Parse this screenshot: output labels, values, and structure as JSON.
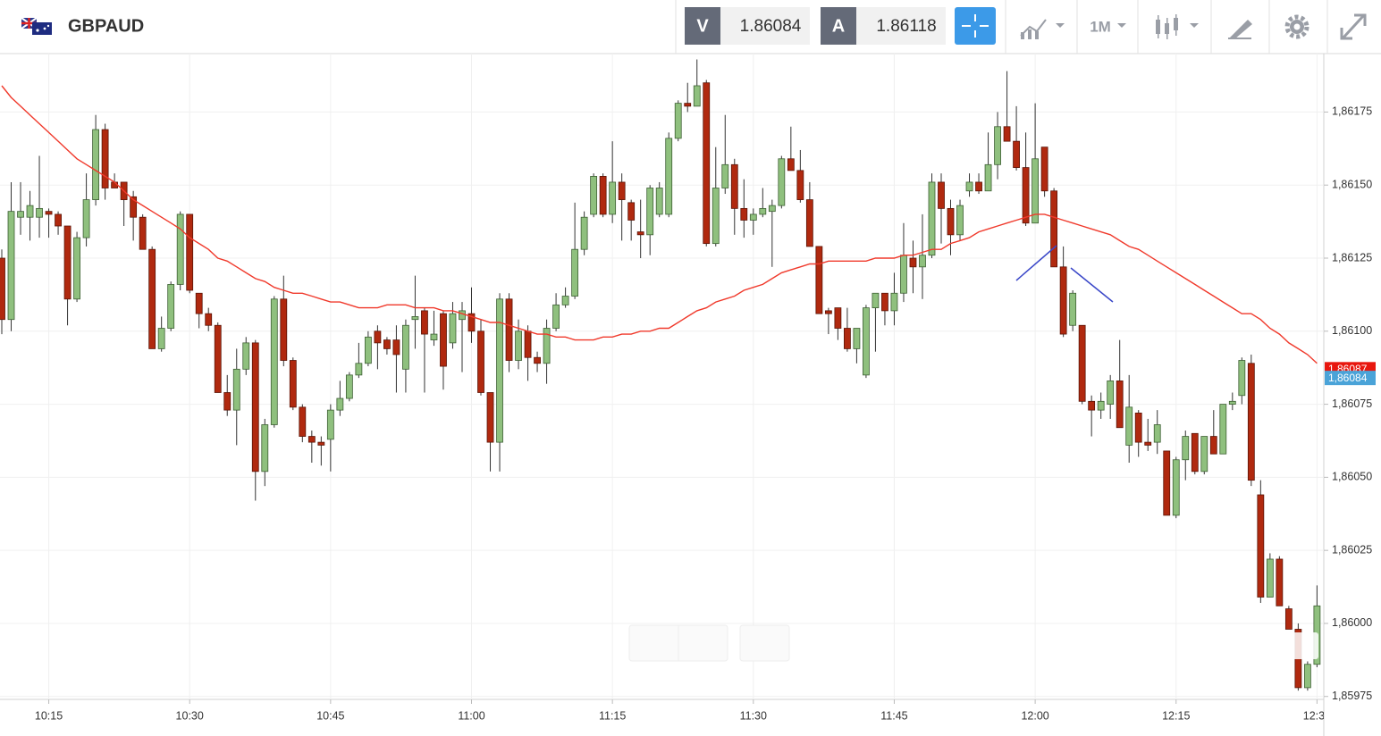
{
  "header": {
    "symbol": "GBPAUD",
    "sell_label": "V",
    "sell_price": "1.86084",
    "buy_label": "A",
    "buy_price": "1.86118",
    "timeframe": "1M"
  },
  "chart_data": {
    "type": "candlestick",
    "categories": [
      null,
      null,
      null,
      null,
      null,
      "10:15",
      null,
      null,
      null,
      null,
      null,
      null,
      null,
      null,
      null,
      null,
      null,
      null,
      null,
      null,
      "10:30",
      null,
      null,
      null,
      null,
      null,
      null,
      null,
      null,
      null,
      null,
      null,
      null,
      null,
      null,
      "10:45",
      null,
      null,
      null,
      null,
      null,
      null,
      null,
      null,
      null,
      null,
      null,
      null,
      null,
      null,
      "11:00",
      null,
      null,
      null,
      null,
      null,
      null,
      null,
      null,
      null,
      null,
      null,
      null,
      null,
      null,
      "11:15",
      null,
      null,
      null,
      null,
      null,
      null,
      null,
      null,
      null,
      null,
      null,
      null,
      null,
      null,
      "11:30",
      null,
      null,
      null,
      null,
      null,
      null,
      null,
      null,
      null,
      null,
      null,
      null,
      null,
      null,
      "11:45",
      null,
      null,
      null,
      null,
      null,
      null,
      null,
      null,
      null,
      null,
      null,
      null,
      null,
      null,
      "12:00",
      null,
      null,
      null,
      null,
      null,
      null,
      null,
      null,
      null,
      null,
      null,
      null,
      null,
      null,
      "12:15",
      null,
      null,
      null,
      null,
      null,
      null,
      null,
      null,
      null,
      null,
      null,
      null,
      null,
      null,
      "12:30"
    ],
    "candles": {
      "up_color": "#8fc07e",
      "down_color": "#b0290f",
      "open": [
        1.86125,
        1.86104,
        1.86139,
        1.86139,
        1.86139,
        1.86141,
        1.8614,
        1.86136,
        1.86111,
        1.86132,
        1.86145,
        1.86169,
        1.86151,
        1.86151,
        1.86146,
        1.86139,
        1.86128,
        1.86094,
        1.86101,
        1.86116,
        1.8614,
        1.86113,
        1.86106,
        1.86102,
        1.86079,
        1.86073,
        1.86087,
        1.86096,
        1.86052,
        1.86068,
        1.86111,
        1.8609,
        1.86074,
        1.86064,
        1.86062,
        1.86063,
        1.86073,
        1.86077,
        1.86085,
        1.86089,
        1.861,
        1.86097,
        1.86097,
        1.86087,
        1.86104,
        1.86107,
        1.86097,
        1.86106,
        1.86096,
        1.86104,
        1.86106,
        1.861,
        1.86079,
        1.86062,
        1.86111,
        1.8609,
        1.861,
        1.86091,
        1.86089,
        1.86101,
        1.86109,
        1.86112,
        1.86128,
        1.8614,
        1.86153,
        1.8614,
        1.86151,
        1.86144,
        1.86134,
        1.86133,
        1.8614,
        1.8614,
        1.86166,
        1.86178,
        1.86177,
        1.86185,
        1.8613,
        1.86149,
        1.86157,
        1.86142,
        1.86138,
        1.8614,
        1.86141,
        1.86143,
        1.86159,
        1.86155,
        1.86145,
        1.86129,
        1.86107,
        1.86108,
        1.86101,
        1.86094,
        1.86085,
        1.86108,
        1.86113,
        1.86107,
        1.86113,
        1.86125,
        1.86122,
        1.86126,
        1.86151,
        1.86142,
        1.86133,
        1.86148,
        1.86151,
        1.86148,
        1.86157,
        1.8617,
        1.86165,
        1.86156,
        1.86137,
        1.86163,
        1.86148,
        1.86122,
        1.86102,
        1.86102,
        1.86076,
        1.86073,
        1.86075,
        1.86083,
        1.86061,
        1.86072,
        1.86062,
        1.86062,
        1.86059,
        1.86037,
        1.86056,
        1.86065,
        1.86052,
        1.86064,
        1.86058,
        1.86075,
        1.86078,
        1.86089,
        1.86044,
        1.86009,
        1.86022,
        1.86005,
        1.85998,
        1.85978,
        1.85986
      ],
      "high": [
        1.86128,
        1.86151,
        1.86151,
        1.86148,
        1.8616,
        1.86142,
        1.86141,
        1.86136,
        1.86134,
        1.86154,
        1.86174,
        1.86171,
        1.86154,
        1.86151,
        1.86148,
        1.8614,
        1.86129,
        1.86105,
        1.86117,
        1.86141,
        1.8614,
        1.86113,
        1.86108,
        1.86103,
        1.86085,
        1.86094,
        1.86098,
        1.86097,
        1.8607,
        1.86112,
        1.86119,
        1.86091,
        1.86075,
        1.86066,
        1.86064,
        1.86075,
        1.86083,
        1.86086,
        1.86096,
        1.861,
        1.86102,
        1.86098,
        1.86102,
        1.86104,
        1.86119,
        1.86108,
        1.86107,
        1.86107,
        1.8611,
        1.8611,
        1.86115,
        1.86104,
        1.86079,
        1.86113,
        1.86113,
        1.86104,
        1.86102,
        1.86093,
        1.86104,
        1.86113,
        1.86115,
        1.86144,
        1.86141,
        1.86154,
        1.86154,
        1.86165,
        1.86154,
        1.86145,
        1.86145,
        1.8615,
        1.86151,
        1.86168,
        1.86179,
        1.86185,
        1.86193,
        1.86186,
        1.86163,
        1.86174,
        1.86159,
        1.86152,
        1.86142,
        1.86149,
        1.86145,
        1.8616,
        1.8617,
        1.86162,
        1.86151,
        1.86129,
        1.86108,
        1.86108,
        1.86108,
        1.86101,
        1.86109,
        1.86113,
        1.86113,
        1.8612,
        1.86137,
        1.86131,
        1.8614,
        1.86154,
        1.86154,
        1.86145,
        1.86145,
        1.86154,
        1.86154,
        1.86168,
        1.86175,
        1.86189,
        1.86177,
        1.86168,
        1.86178,
        1.86163,
        1.86149,
        1.86129,
        1.86114,
        1.86102,
        1.86078,
        1.86079,
        1.86085,
        1.86097,
        1.86085,
        1.86073,
        1.8607,
        1.86073,
        1.86059,
        1.86057,
        1.86066,
        1.86065,
        1.86064,
        1.86073,
        1.86075,
        1.86079,
        1.86091,
        1.86092,
        1.86049,
        1.86024,
        1.86023,
        1.86006,
        1.86,
        1.85987,
        1.86013
      ],
      "low": [
        1.86099,
        1.861,
        1.86133,
        1.86131,
        1.86132,
        1.86132,
        1.86133,
        1.86102,
        1.8611,
        1.86129,
        1.86143,
        1.86145,
        1.86149,
        1.86136,
        1.86131,
        1.86128,
        1.86094,
        1.86093,
        1.861,
        1.86114,
        1.86113,
        1.86101,
        1.861,
        1.86079,
        1.86071,
        1.86061,
        1.86085,
        1.86042,
        1.86047,
        1.86067,
        1.86088,
        1.86073,
        1.86062,
        1.86055,
        1.86054,
        1.86052,
        1.86071,
        1.86076,
        1.86084,
        1.86088,
        1.86087,
        1.86092,
        1.86079,
        1.86079,
        1.86094,
        1.86079,
        1.86095,
        1.8608,
        1.86094,
        1.86086,
        1.86096,
        1.86078,
        1.86052,
        1.86052,
        1.86086,
        1.86087,
        1.86083,
        1.86086,
        1.86082,
        1.861,
        1.86108,
        1.86111,
        1.86126,
        1.86139,
        1.86139,
        1.86137,
        1.86131,
        1.86131,
        1.86125,
        1.86126,
        1.86139,
        1.86139,
        1.86165,
        1.86175,
        1.86177,
        1.86129,
        1.86129,
        1.86147,
        1.86133,
        1.86132,
        1.86133,
        1.86139,
        1.86122,
        1.86142,
        1.86155,
        1.86144,
        1.86129,
        1.86106,
        1.86099,
        1.86097,
        1.86093,
        1.86089,
        1.86084,
        1.86093,
        1.86102,
        1.86102,
        1.8611,
        1.86113,
        1.86111,
        1.86125,
        1.8613,
        1.86126,
        1.86131,
        1.86146,
        1.86147,
        1.86148,
        1.86152,
        1.86165,
        1.86155,
        1.86136,
        1.86137,
        1.86146,
        1.86122,
        1.86098,
        1.861,
        1.86075,
        1.86064,
        1.8607,
        1.8607,
        1.86067,
        1.86055,
        1.86057,
        1.86059,
        1.86058,
        1.86037,
        1.86036,
        1.86049,
        1.86051,
        1.86051,
        1.86058,
        1.86058,
        1.86073,
        1.86075,
        1.86047,
        1.86007,
        1.86009,
        1.86006,
        1.85998,
        1.85977,
        1.85977,
        1.85985
      ],
      "close": [
        1.86104,
        1.86141,
        1.86141,
        1.86143,
        1.86142,
        1.8614,
        1.86136,
        1.86111,
        1.86132,
        1.86145,
        1.86169,
        1.86149,
        1.86149,
        1.86145,
        1.86139,
        1.86128,
        1.86094,
        1.86101,
        1.86116,
        1.8614,
        1.86114,
        1.86106,
        1.86102,
        1.86079,
        1.86073,
        1.86087,
        1.86096,
        1.86052,
        1.86068,
        1.86111,
        1.8609,
        1.86074,
        1.86064,
        1.86062,
        1.86061,
        1.86073,
        1.86077,
        1.86085,
        1.86089,
        1.86098,
        1.86096,
        1.86094,
        1.86092,
        1.86102,
        1.86105,
        1.86099,
        1.86099,
        1.86088,
        1.86106,
        1.86107,
        1.861,
        1.86079,
        1.86062,
        1.86111,
        1.8609,
        1.861,
        1.86091,
        1.86089,
        1.86101,
        1.86109,
        1.86112,
        1.86128,
        1.86139,
        1.86153,
        1.8614,
        1.86151,
        1.86145,
        1.86138,
        1.86133,
        1.86149,
        1.86149,
        1.86166,
        1.86178,
        1.86177,
        1.86184,
        1.8613,
        1.86149,
        1.86157,
        1.86142,
        1.86138,
        1.8614,
        1.86142,
        1.86143,
        1.86159,
        1.86155,
        1.86145,
        1.86129,
        1.86106,
        1.86106,
        1.86101,
        1.86094,
        1.86101,
        1.86108,
        1.86113,
        1.86107,
        1.86113,
        1.86126,
        1.86122,
        1.86126,
        1.86151,
        1.86142,
        1.86133,
        1.86143,
        1.86151,
        1.86148,
        1.86157,
        1.8617,
        1.86165,
        1.86156,
        1.86137,
        1.86159,
        1.86148,
        1.86122,
        1.86099,
        1.86113,
        1.86076,
        1.86073,
        1.86076,
        1.86083,
        1.86067,
        1.86074,
        1.86062,
        1.86061,
        1.86068,
        1.86037,
        1.86056,
        1.86064,
        1.86052,
        1.86064,
        1.86058,
        1.86075,
        1.86076,
        1.8609,
        1.86049,
        1.86009,
        1.86022,
        1.86006,
        1.85998,
        1.85978,
        1.85986,
        1.86006
      ]
    },
    "moving_average": {
      "color": "#f0392b",
      "values": [
        1.86184,
        1.8618,
        1.86177,
        1.86174,
        1.86171,
        1.86168,
        1.86165,
        1.86162,
        1.86159,
        1.86157,
        1.86155,
        1.86153,
        1.86151,
        1.86148,
        1.86145,
        1.86143,
        1.86141,
        1.86139,
        1.86137,
        1.86135,
        1.86132,
        1.8613,
        1.86128,
        1.86125,
        1.86124,
        1.86122,
        1.8612,
        1.86118,
        1.86117,
        1.86115,
        1.86114,
        1.86113,
        1.86113,
        1.86112,
        1.86111,
        1.8611,
        1.8611,
        1.86109,
        1.86108,
        1.86108,
        1.86108,
        1.86109,
        1.86109,
        1.86109,
        1.86108,
        1.86108,
        1.86108,
        1.86107,
        1.86107,
        1.86106,
        1.86105,
        1.86104,
        1.86103,
        1.86103,
        1.86102,
        1.86101,
        1.861,
        1.86099,
        1.86099,
        1.86098,
        1.86098,
        1.86097,
        1.86097,
        1.86097,
        1.86098,
        1.86098,
        1.86099,
        1.86099,
        1.861,
        1.861,
        1.86101,
        1.86101,
        1.86103,
        1.86105,
        1.86107,
        1.86108,
        1.8611,
        1.86111,
        1.86112,
        1.86114,
        1.86115,
        1.86116,
        1.86118,
        1.8612,
        1.86121,
        1.86122,
        1.86123,
        1.86123,
        1.86124,
        1.86124,
        1.86124,
        1.86124,
        1.86124,
        1.86125,
        1.86125,
        1.86125,
        1.86126,
        1.86126,
        1.86127,
        1.86128,
        1.86128,
        1.8613,
        1.86131,
        1.86132,
        1.86134,
        1.86135,
        1.86136,
        1.86137,
        1.86138,
        1.86139,
        1.8614,
        1.8614,
        1.86139,
        1.86138,
        1.86137,
        1.86136,
        1.86135,
        1.86134,
        1.86133,
        1.86131,
        1.86129,
        1.86128,
        1.86126,
        1.86124,
        1.86122,
        1.8612,
        1.86118,
        1.86116,
        1.86114,
        1.86112,
        1.8611,
        1.86108,
        1.86106,
        1.86106,
        1.86104,
        1.86101,
        1.86099,
        1.86096,
        1.86094,
        1.86092,
        1.86089
      ]
    },
    "ylim": [
      1.85974,
      1.86195
    ],
    "yticks": [
      {
        "value": 1.85975,
        "label": "1,85975"
      },
      {
        "value": 1.86,
        "label": "1,86000"
      },
      {
        "value": 1.86025,
        "label": "1,86025"
      },
      {
        "value": 1.8605,
        "label": "1,86050"
      },
      {
        "value": 1.86075,
        "label": "1,86075"
      },
      {
        "value": 1.861,
        "label": "1,86100"
      },
      {
        "value": 1.86125,
        "label": "1,86125"
      },
      {
        "value": 1.8615,
        "label": "1,86150"
      },
      {
        "value": 1.86175,
        "label": "1,86175"
      }
    ],
    "grid": true,
    "price_tags": [
      {
        "value": 1.86087,
        "label": "1,86087",
        "color": "#e8170e"
      },
      {
        "value": 1.86084,
        "label": "1,86084",
        "color": "#4aa3d8"
      }
    ]
  }
}
